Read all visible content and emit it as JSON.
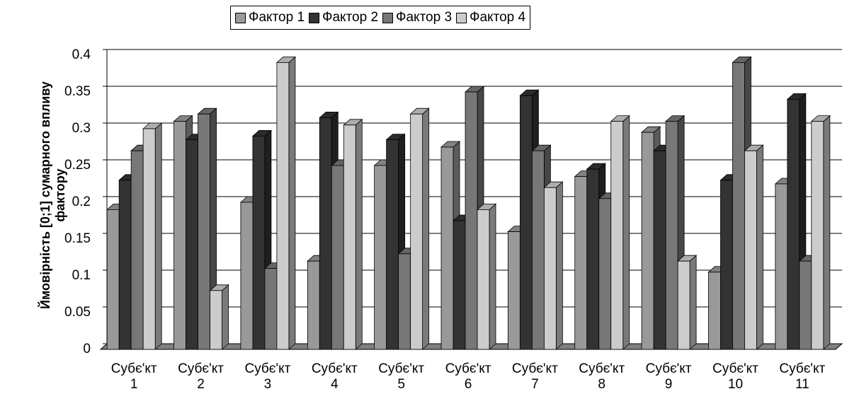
{
  "chart_data": {
    "type": "bar",
    "y_label": "Ймовірність [0;1] сумарного впливу фактору",
    "categories": [
      "Субє'кт 1",
      "Субє'кт 2",
      "Субє'кт 3",
      "Субє'кт 4",
      "Субє'кт 5",
      "Субє'кт 6",
      "Субє'кт 7",
      "Субє'кт 8",
      "Субє'кт 9",
      "Субє'кт 10",
      "Субє'кт 11"
    ],
    "series": [
      {
        "name": "Фактор 1",
        "color": "#999999",
        "values": [
          0.19,
          0.31,
          0.2,
          0.12,
          0.25,
          0.275,
          0.16,
          0.235,
          0.295,
          0.105,
          0.225
        ]
      },
      {
        "name": "Фактор 2",
        "color": "#333333",
        "values": [
          0.23,
          0.285,
          0.29,
          0.315,
          0.285,
          0.175,
          0.345,
          0.245,
          0.27,
          0.23,
          0.34
        ]
      },
      {
        "name": "Фактор 3",
        "color": "#777777",
        "values": [
          0.27,
          0.32,
          0.11,
          0.25,
          0.13,
          0.35,
          0.27,
          0.205,
          0.31,
          0.39,
          0.12
        ]
      },
      {
        "name": "Фактор 4",
        "color": "#cccccc",
        "values": [
          0.3,
          0.08,
          0.39,
          0.305,
          0.32,
          0.19,
          0.22,
          0.31,
          0.12,
          0.27,
          0.31
        ]
      }
    ],
    "ylim": [
      0,
      0.4
    ],
    "yticks": [
      0,
      0.05,
      0.1,
      0.15,
      0.2,
      0.25,
      0.3,
      0.35,
      0.4
    ],
    "grid": true,
    "legend": "top"
  }
}
